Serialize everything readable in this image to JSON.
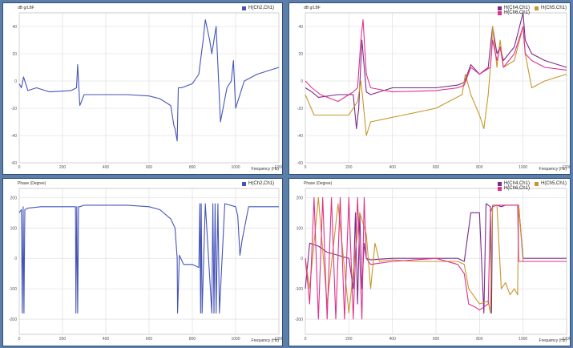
{
  "colors": {
    "blue": "#4455b8",
    "purple": "#7a2a8a",
    "gold": "#c8962a",
    "pink": "#e0308c"
  },
  "chart_data": [
    {
      "type": "line",
      "ylabel": "dB g/LBF",
      "xlabel": "Frequency (Hz)",
      "ylim": [
        -60,
        50
      ],
      "yticks": [
        "40",
        "20",
        "0",
        "-20",
        "-40",
        "-60"
      ],
      "xlim": [
        0,
        1200
      ],
      "xticks": [
        "0",
        "200",
        "400",
        "600",
        "800",
        "1000",
        "1200"
      ],
      "series": [
        {
          "name": "H(Ch2,Ch1)",
          "color": "#4455b8",
          "x": [
            0,
            10,
            20,
            40,
            80,
            140,
            240,
            265,
            270,
            280,
            300,
            400,
            500,
            600,
            650,
            700,
            715,
            720,
            730,
            735,
            750,
            800,
            830,
            850,
            860,
            880,
            890,
            900,
            910,
            930,
            960,
            980,
            990,
            1000,
            1040,
            1100,
            1200
          ],
          "y": [
            -2,
            -5,
            3,
            -7,
            -5,
            -8,
            -7,
            -5,
            12,
            -18,
            -10,
            -10,
            -10,
            -11,
            -13,
            -18,
            -33,
            -35,
            -44,
            -5,
            -5,
            -2,
            5,
            30,
            45,
            30,
            20,
            30,
            40,
            -30,
            -5,
            0,
            15,
            -20,
            0,
            5,
            10
          ]
        }
      ]
    },
    {
      "type": "line",
      "ylabel": "dB g/LBF",
      "xlabel": "Frequency (Hz)",
      "ylim": [
        -60,
        50
      ],
      "yticks": [
        "40",
        "20",
        "0",
        "-20",
        "-40",
        "-60"
      ],
      "xlim": [
        0,
        1200
      ],
      "xticks": [
        "0",
        "200",
        "400",
        "600",
        "800",
        "1000",
        "1200"
      ],
      "series": [
        {
          "name": "H(Ch4,Ch1)",
          "color": "#7a2a8a",
          "x": [
            0,
            30,
            60,
            150,
            220,
            235,
            245,
            260,
            280,
            300,
            400,
            600,
            700,
            730,
            760,
            800,
            840,
            860,
            880,
            895,
            910,
            960,
            1000,
            1010,
            1040,
            1100,
            1200
          ],
          "y": [
            -5,
            -8,
            -12,
            -10,
            -10,
            -35,
            -20,
            30,
            -8,
            -10,
            -5,
            -5,
            -3,
            -1,
            12,
            5,
            10,
            40,
            20,
            25,
            15,
            25,
            50,
            30,
            20,
            15,
            10
          ]
        },
        {
          "name": "H(Ch5,Ch1)",
          "color": "#c8962a",
          "x": [
            0,
            40,
            100,
            200,
            240,
            255,
            265,
            280,
            300,
            360,
            450,
            600,
            720,
            735,
            760,
            800,
            820,
            840,
            855,
            860,
            880,
            895,
            910,
            960,
            1000,
            1010,
            1040,
            1100,
            1200
          ],
          "y": [
            -10,
            -25,
            -25,
            -25,
            -15,
            0,
            -15,
            -40,
            -30,
            -28,
            -25,
            -20,
            -10,
            5,
            -10,
            -25,
            -35,
            -10,
            20,
            40,
            10,
            30,
            10,
            15,
            40,
            20,
            -5,
            0,
            5
          ]
        },
        {
          "name": "H(Ch6,Ch1)",
          "color": "#e0308c",
          "x": [
            0,
            30,
            70,
            150,
            220,
            240,
            255,
            265,
            280,
            300,
            400,
            600,
            700,
            730,
            760,
            800,
            850,
            860,
            880,
            895,
            910,
            960,
            1000,
            1010,
            1040,
            1100,
            1200
          ],
          "y": [
            0,
            -5,
            -10,
            -15,
            -8,
            -5,
            30,
            45,
            5,
            -5,
            -8,
            -7,
            -5,
            -3,
            10,
            5,
            10,
            30,
            15,
            25,
            10,
            20,
            40,
            20,
            15,
            10,
            8
          ]
        }
      ]
    },
    {
      "type": "line",
      "ylabel": "Phase (Degree)",
      "xlabel": "Frequency (Hz)",
      "ylim": [
        -250,
        230
      ],
      "yticks": [
        "200",
        "100",
        "0",
        "-100",
        "-200"
      ],
      "xlim": [
        0,
        1200
      ],
      "xticks": [
        "0",
        "200",
        "400",
        "600",
        "800",
        "1000",
        "1200"
      ],
      "series": [
        {
          "name": "H(Ch2,Ch1)",
          "color": "#4455b8",
          "x": [
            0,
            10,
            14,
            18,
            22,
            26,
            40,
            100,
            200,
            260,
            262,
            266,
            270,
            274,
            280,
            300,
            400,
            500,
            600,
            650,
            700,
            720,
            730,
            732,
            740,
            760,
            800,
            830,
            835,
            838,
            841,
            845,
            860,
            890,
            895,
            900,
            905,
            910,
            918,
            925,
            950,
            1000,
            1010,
            1020,
            1030,
            1060,
            1200
          ],
          "y": [
            150,
            160,
            -180,
            170,
            -180,
            160,
            165,
            170,
            170,
            170,
            -180,
            170,
            -180,
            170,
            170,
            175,
            175,
            175,
            170,
            160,
            130,
            100,
            0,
            -180,
            10,
            -20,
            -20,
            -30,
            180,
            -180,
            180,
            -180,
            180,
            -180,
            180,
            -180,
            180,
            -180,
            180,
            -180,
            180,
            170,
            140,
            10,
            60,
            170,
            170
          ]
        }
      ]
    },
    {
      "type": "line",
      "ylabel": "Phase (Degree)",
      "xlabel": "Frequency (Hz)",
      "ylim": [
        -250,
        230
      ],
      "yticks": [
        "200",
        "100",
        "0",
        "-100",
        "-200"
      ],
      "xlim": [
        0,
        1200
      ],
      "xticks": [
        "0",
        "200",
        "400",
        "600",
        "800",
        "1000",
        "1200"
      ],
      "series": [
        {
          "name": "H(Ch4,Ch1)",
          "color": "#7a2a8a",
          "x": [
            0,
            20,
            60,
            100,
            150,
            200,
            220,
            230,
            240,
            250,
            260,
            270,
            280,
            300,
            400,
            500,
            600,
            700,
            730,
            760,
            800,
            820,
            830,
            850,
            855,
            860,
            880,
            900,
            920,
            940,
            960,
            980,
            1000,
            1200
          ],
          "y": [
            -100,
            50,
            40,
            20,
            10,
            0,
            -100,
            150,
            -150,
            150,
            -100,
            50,
            0,
            -5,
            0,
            0,
            0,
            0,
            -10,
            150,
            150,
            -180,
            180,
            170,
            -180,
            175,
            175,
            170,
            175,
            175,
            175,
            175,
            0,
            0
          ]
        },
        {
          "name": "H(Ch5,Ch1)",
          "color": "#c8962a",
          "x": [
            0,
            20,
            60,
            100,
            150,
            200,
            250,
            280,
            300,
            320,
            340,
            400,
            500,
            600,
            700,
            730,
            750,
            800,
            840,
            850,
            860,
            880,
            900,
            920,
            940,
            960,
            975,
            980,
            1000,
            1200
          ],
          "y": [
            0,
            -100,
            200,
            -150,
            180,
            -180,
            150,
            80,
            -100,
            50,
            -10,
            -5,
            -10,
            -10,
            -10,
            -20,
            -100,
            -150,
            -140,
            -180,
            175,
            175,
            -100,
            -80,
            -120,
            -100,
            -120,
            175,
            -10,
            -10
          ]
        },
        {
          "name": "H(Ch6,Ch1)",
          "color": "#e0308c",
          "x": [
            0,
            20,
            40,
            60,
            80,
            100,
            120,
            140,
            160,
            180,
            200,
            220,
            240,
            260,
            270,
            280,
            300,
            400,
            600,
            700,
            730,
            750,
            780,
            800,
            840,
            850,
            860,
            880,
            900,
            960,
            975,
            980,
            1000,
            1200
          ],
          "y": [
            0,
            -150,
            200,
            -200,
            200,
            -200,
            200,
            -200,
            200,
            -200,
            200,
            -200,
            200,
            -200,
            200,
            0,
            -20,
            -10,
            0,
            -20,
            -50,
            -150,
            -160,
            -170,
            -150,
            150,
            170,
            175,
            175,
            175,
            175,
            -10,
            -10,
            -10
          ]
        }
      ]
    }
  ]
}
